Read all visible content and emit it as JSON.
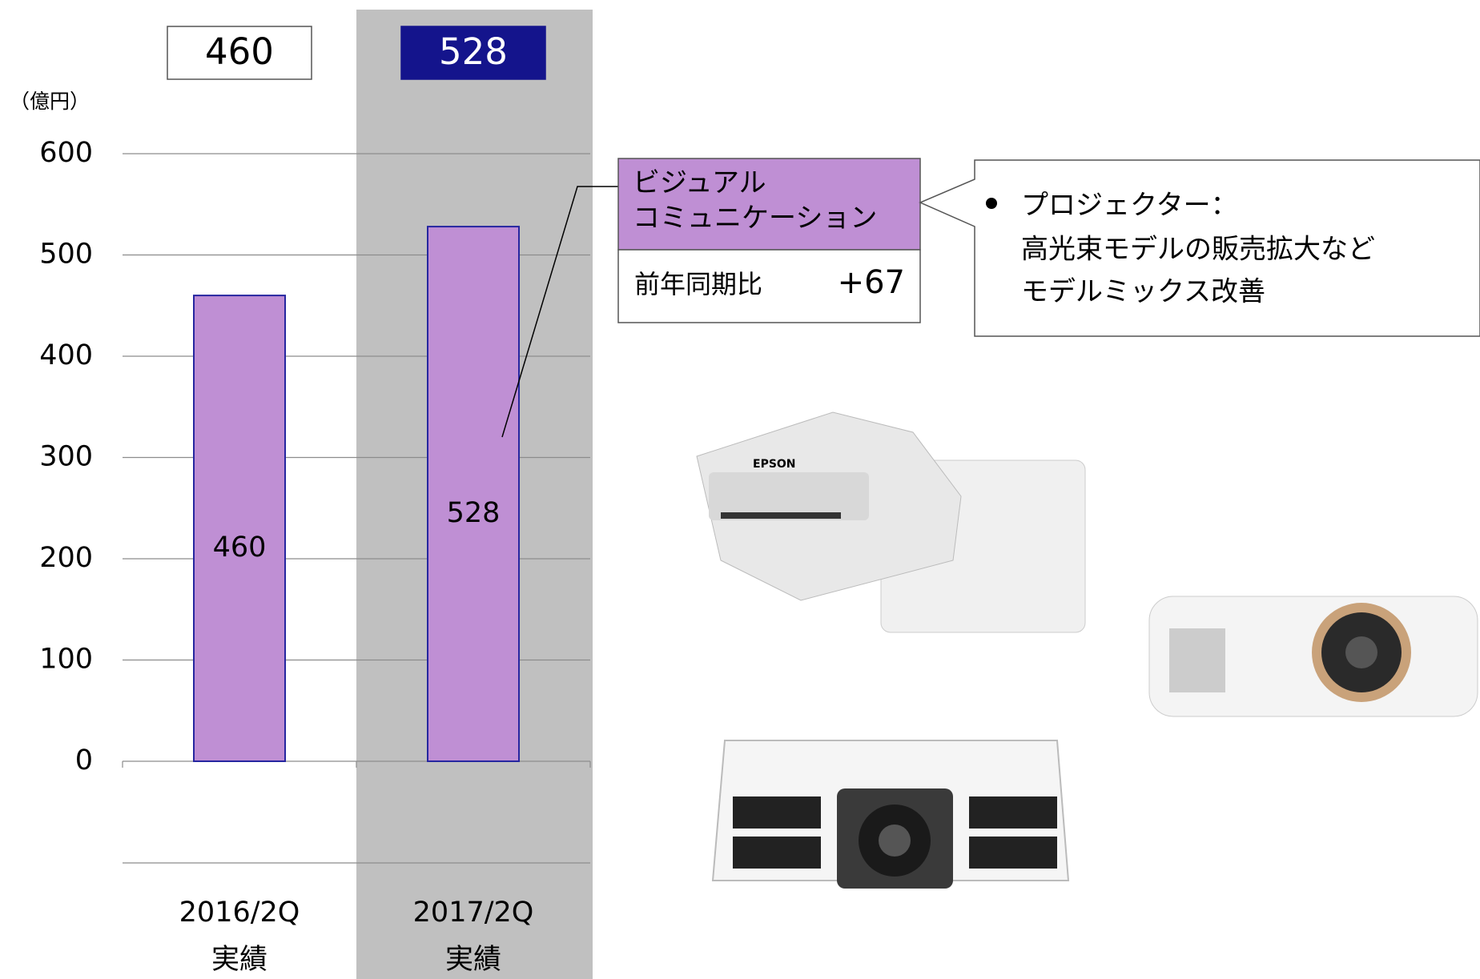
{
  "chart_data": {
    "type": "bar",
    "unit_label": "（億円）",
    "categories": [
      "2016/2Q",
      "2017/2Q"
    ],
    "category_sublabels": [
      "実績",
      "実績"
    ],
    "values": [
      460,
      528
    ],
    "color": "#bf8fd4",
    "edge_color": "#2626a0",
    "ylim": [
      0,
      600
    ],
    "yticks": [
      0,
      100,
      200,
      300,
      400,
      500,
      600
    ],
    "grid": true
  },
  "callout": {
    "segment_lines": [
      "ビジュアル",
      "コミュニケーション"
    ],
    "comparison_label": "前年同期比",
    "comparison_value": "+67"
  },
  "note": {
    "lines": [
      "プロジェクター：",
      "高光束モデルの販売拡大など",
      "モデルミックス改善"
    ]
  }
}
